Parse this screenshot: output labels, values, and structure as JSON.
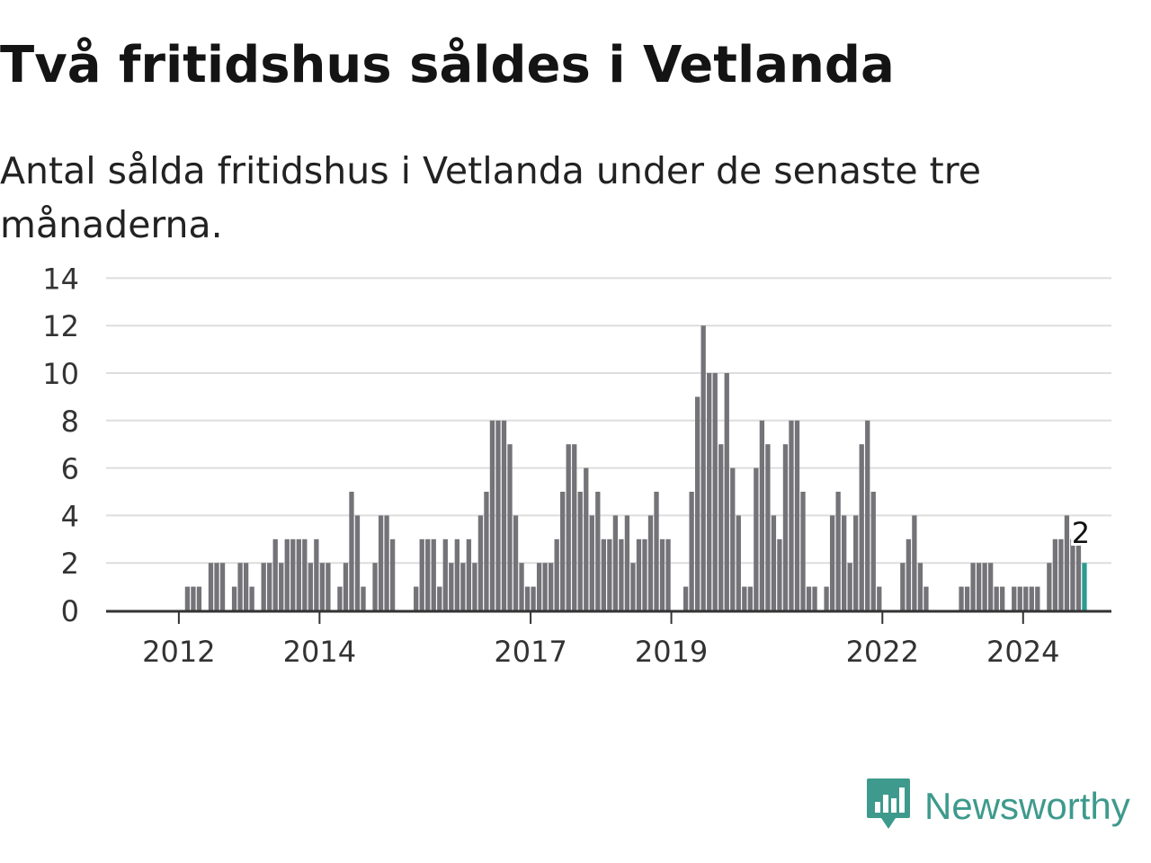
{
  "header": {
    "title": "Två fritidshus såldes i Vetlanda",
    "subtitle": "Antal sålda fritidshus i Vetlanda under de senaste tre månaderna."
  },
  "logo": {
    "text": "Newsworthy",
    "icon": "bar-chart-speech-bubble-icon",
    "color": "#3d9a8c"
  },
  "colors": {
    "bar": "#737378",
    "highlight": "#2a9d8f",
    "grid": "#dddddd",
    "axis": "#333333"
  },
  "chart_data": {
    "type": "bar",
    "title": "Två fritidshus såldes i Vetlanda",
    "subtitle": "Antal sålda fritidshus i Vetlanda under de senaste tre månaderna.",
    "xlabel": "",
    "ylabel": "",
    "ylim": [
      0,
      14
    ],
    "yticks": [
      0,
      2,
      4,
      6,
      8,
      10,
      12,
      14
    ],
    "grid": true,
    "x_start": "2011-01",
    "x_interval": "month",
    "xticks": [
      {
        "label": "2012",
        "month_index": 12
      },
      {
        "label": "2014",
        "month_index": 36
      },
      {
        "label": "2017",
        "month_index": 72
      },
      {
        "label": "2019",
        "month_index": 96
      },
      {
        "label": "2022",
        "month_index": 132
      },
      {
        "label": "2024",
        "month_index": 156
      }
    ],
    "values": [
      0,
      0,
      0,
      0,
      0,
      0,
      0,
      0,
      0,
      0,
      0,
      0,
      0,
      1,
      1,
      1,
      0,
      2,
      2,
      2,
      0,
      1,
      2,
      2,
      1,
      0,
      2,
      2,
      3,
      2,
      3,
      3,
      3,
      3,
      2,
      3,
      2,
      2,
      0,
      1,
      2,
      5,
      4,
      1,
      0,
      2,
      4,
      4,
      3,
      0,
      0,
      0,
      1,
      3,
      3,
      3,
      1,
      3,
      2,
      3,
      2,
      3,
      2,
      4,
      5,
      8,
      8,
      8,
      7,
      4,
      2,
      1,
      1,
      2,
      2,
      2,
      3,
      5,
      7,
      7,
      5,
      6,
      4,
      5,
      3,
      3,
      4,
      3,
      4,
      2,
      3,
      3,
      4,
      5,
      3,
      3,
      0,
      0,
      1,
      5,
      9,
      12,
      10,
      10,
      7,
      10,
      6,
      4,
      1,
      1,
      6,
      8,
      7,
      4,
      3,
      7,
      8,
      8,
      5,
      1,
      1,
      0,
      1,
      4,
      5,
      4,
      2,
      4,
      7,
      8,
      5,
      1,
      0,
      0,
      0,
      2,
      3,
      4,
      2,
      1,
      0,
      0,
      0,
      0,
      0,
      1,
      1,
      2,
      2,
      2,
      2,
      1,
      1,
      0,
      1,
      1,
      1,
      1,
      1,
      0,
      2,
      3,
      3,
      4,
      3,
      3,
      2
    ],
    "highlight_index": 166,
    "annotation": "2"
  }
}
